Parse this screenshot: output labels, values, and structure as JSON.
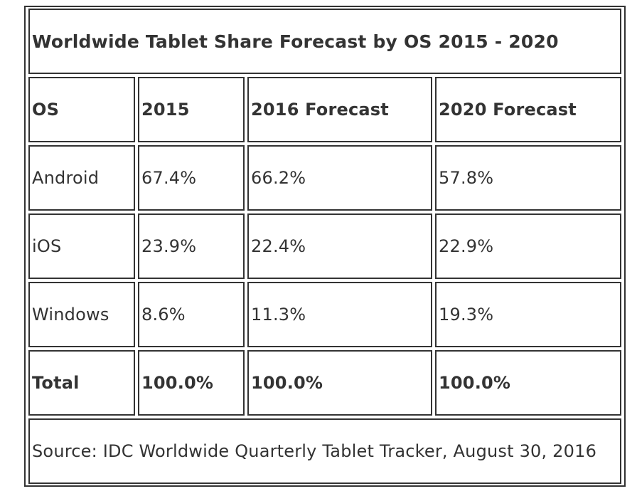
{
  "table": {
    "title": "Worldwide Tablet Share Forecast by OS 2015 - 2020",
    "headers": [
      "OS",
      "2015",
      "2016 Forecast",
      "2020 Forecast"
    ],
    "rows": [
      [
        "Android",
        "67.4%",
        "66.2%",
        "57.8%"
      ],
      [
        "iOS",
        "23.9%",
        "22.4%",
        "22.9%"
      ],
      [
        "Windows",
        "8.6%",
        "11.3%",
        "19.3%"
      ],
      [
        "Total",
        "100.0%",
        "100.0%",
        "100.0%"
      ]
    ],
    "source": "Source: IDC Worldwide Quarterly Tablet Tracker, August 30, 2016"
  },
  "chart_data": {
    "type": "table",
    "title": "Worldwide Tablet Share Forecast by OS 2015 - 2020",
    "columns": [
      "OS",
      "2015",
      "2016 Forecast",
      "2020 Forecast"
    ],
    "categories": [
      "Android",
      "iOS",
      "Windows",
      "Total"
    ],
    "series": [
      {
        "name": "2015",
        "values": [
          67.4,
          23.9,
          8.6,
          100.0
        ]
      },
      {
        "name": "2016 Forecast",
        "values": [
          66.2,
          22.4,
          11.3,
          100.0
        ]
      },
      {
        "name": "2020 Forecast",
        "values": [
          57.8,
          22.9,
          19.3,
          100.0
        ]
      }
    ],
    "unit": "%",
    "source": "Source: IDC Worldwide Quarterly Tablet Tracker, August 30, 2016"
  }
}
